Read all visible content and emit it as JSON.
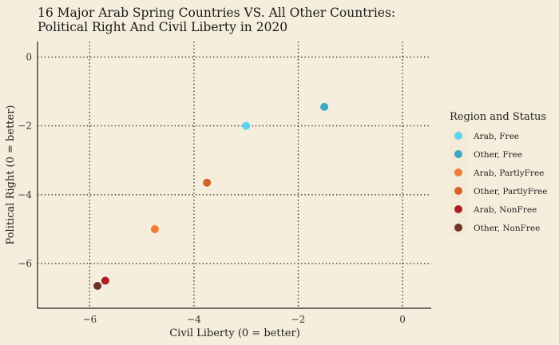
{
  "chart_data": {
    "type": "scatter",
    "title_lines": [
      "16 Major Arab Spring Countries VS. All Other Countries:",
      "Political Right And Civil Liberty in 2020"
    ],
    "xlabel": "Civil Liberty (0 = better)",
    "ylabel": "Political Right (0 = better)",
    "xlim": [
      -7.0,
      0.55
    ],
    "ylim": [
      -7.3,
      0.45
    ],
    "xticks": [
      -6,
      -4,
      -2,
      0
    ],
    "yticks": [
      0,
      -2,
      -4,
      -6
    ],
    "grid": true,
    "legend_position": "right",
    "legend_title": "Region and Status",
    "series": [
      {
        "name": "Arab, Free",
        "color": "#5ad3f0",
        "points": [
          {
            "x": -3.0,
            "y": -2.0
          }
        ]
      },
      {
        "name": "Other, Free",
        "color": "#3aa9c4",
        "points": [
          {
            "x": -1.5,
            "y": -1.45
          }
        ]
      },
      {
        "name": "Arab, PartlyFree",
        "color": "#f07c38",
        "points": [
          {
            "x": -4.75,
            "y": -5.0
          }
        ]
      },
      {
        "name": "Other, PartlyFree",
        "color": "#d2622a",
        "points": [
          {
            "x": -3.75,
            "y": -3.65
          }
        ]
      },
      {
        "name": "Arab, NonFree",
        "color": "#b01c22",
        "points": [
          {
            "x": -5.7,
            "y": -6.5
          }
        ]
      },
      {
        "name": "Other, NonFree",
        "color": "#6e3428",
        "points": [
          {
            "x": -5.85,
            "y": -6.65
          }
        ]
      }
    ]
  }
}
